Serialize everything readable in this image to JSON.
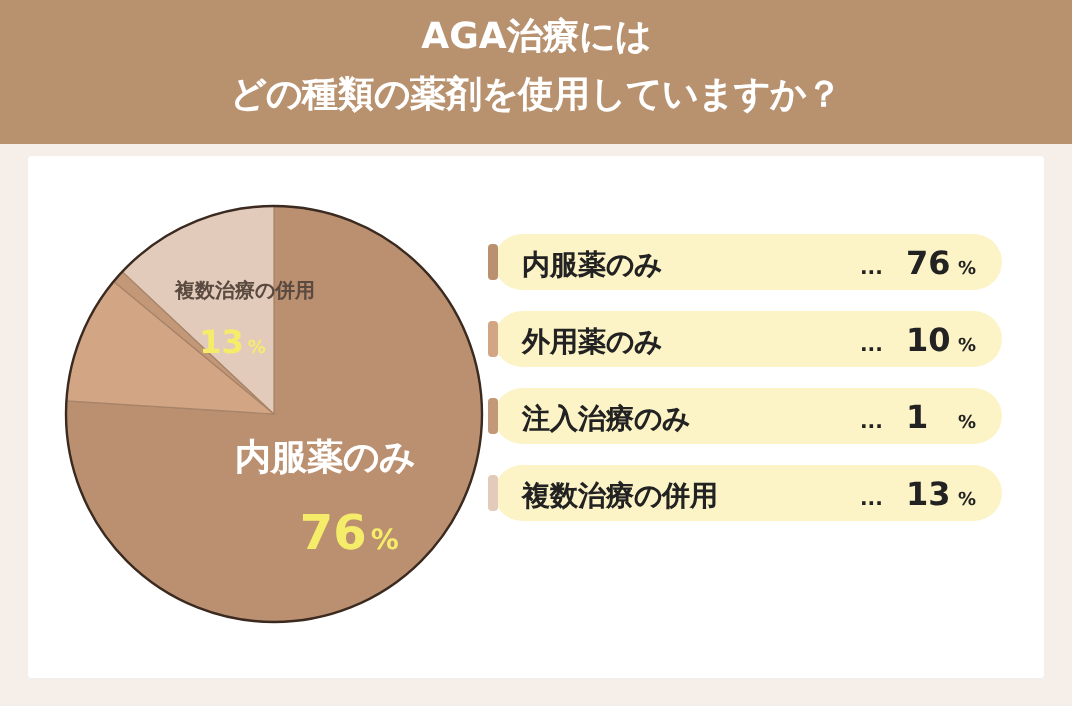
{
  "chart_data": {
    "type": "pie",
    "title": "AGA治療には",
    "subtitle": "どの種類の薬剤を使用していますか？",
    "annotations": [
      "... 76 %",
      "... 10 %",
      "... 1 %",
      "... 13 %"
    ],
    "categories": [
      "内服薬のみ",
      "外用薬のみ",
      "注入治療のみ",
      "複数治療の併用"
    ],
    "values": [
      76,
      10,
      1,
      13
    ],
    "colors": [
      "#bb9070",
      "#d2a584",
      "#c39878",
      "#e3cbbb"
    ],
    "value_labels": [
      "76%",
      null,
      null,
      "13%"
    ],
    "legend": "right"
  }
}
